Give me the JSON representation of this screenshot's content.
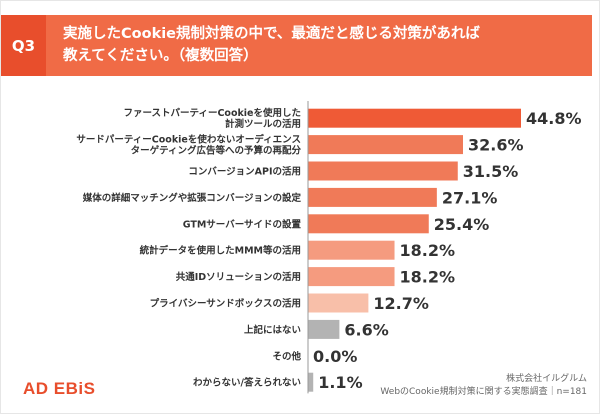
{
  "header": {
    "question_id": "Q3",
    "title": "実施したCookie規制対策の中で、最適だと感じる対策があれば\n教えてください。（複数回答）"
  },
  "chart_data": {
    "type": "bar",
    "orientation": "horizontal",
    "categories": [
      "ファーストパーティーCookieを使用した\n計測ツールの活用",
      "サードパーティーCookieを使わないオーディエンス\nターゲティング広告等への予算の再配分",
      "コンバージョンAPIの活用",
      "媒体の詳細マッチングや拡張コンバージョンの設定",
      "GTMサーバーサイドの設置",
      "統計データを使用したMMM等の活用",
      "共通IDソリューションの活用",
      "プライバシーサンドボックスの活用",
      "上記にはない",
      "その他",
      "わからない/答えられない"
    ],
    "values": [
      44.8,
      32.6,
      31.5,
      27.1,
      25.4,
      18.2,
      18.2,
      12.7,
      6.6,
      0.0,
      1.1
    ],
    "value_labels": [
      "44.8%",
      "32.6%",
      "31.5%",
      "27.1%",
      "25.4%",
      "18.2%",
      "18.2%",
      "12.7%",
      "6.6%",
      "0.0%",
      "1.1%"
    ],
    "bar_colors": [
      "#ef5a36",
      "#f07a58",
      "#f07a58",
      "#f07a58",
      "#f07a58",
      "#f59b7f",
      "#f59b7f",
      "#f8bfa9",
      "#b3b3b3",
      "#b3b3b3",
      "#b3b3b3"
    ],
    "xlim": [
      0,
      48
    ],
    "legend": "none",
    "grid": false
  },
  "footer": {
    "logo": "AD EBiS",
    "company": "株式会社イルグルム",
    "survey": "WebのCookie規制対策に関する実態調査｜n=181"
  }
}
